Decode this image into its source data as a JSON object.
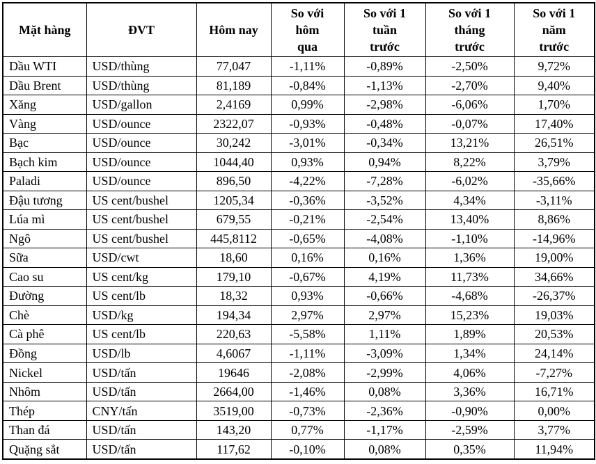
{
  "colors": {
    "border": "#000000",
    "text": "#000000",
    "background": "#ffffff"
  },
  "chart_data": {
    "type": "table",
    "headers": [
      "Mặt hàng",
      "ĐVT",
      "Hôm nay",
      "So với\nhôm\nqua",
      "So với 1\ntuần\ntrước",
      "So với 1\ntháng\ntrước",
      "So với 1\nnăm\ntrước"
    ],
    "rows": [
      [
        "Dầu WTI",
        "USD/thùng",
        "77,047",
        "-1,11%",
        "-0,89%",
        "-2,50%",
        "9,72%"
      ],
      [
        "Dầu Brent",
        "USD/thùng",
        "81,189",
        "-0,84%",
        "-1,13%",
        "-2,70%",
        "9,40%"
      ],
      [
        "Xăng",
        "USD/gallon",
        "2,4169",
        "0,99%",
        "-2,98%",
        "-6,06%",
        "1,70%"
      ],
      [
        "Vàng",
        "USD/ounce",
        "2322,07",
        "-0,93%",
        "-0,48%",
        "-0,07%",
        "17,40%"
      ],
      [
        "Bạc",
        "USD/ounce",
        "30,242",
        "-3,01%",
        "-0,34%",
        "13,21%",
        "26,51%"
      ],
      [
        "Bạch kim",
        "USD/ounce",
        "1044,40",
        "0,93%",
        "0,94%",
        "8,22%",
        "3,79%"
      ],
      [
        "Paladi",
        "USD/ounce",
        "896,50",
        "-4,22%",
        "-7,28%",
        "-6,02%",
        "-35,66%"
      ],
      [
        "Đậu tương",
        "US cent/bushel",
        "1205,34",
        "-0,36%",
        "-3,52%",
        "4,34%",
        "-3,11%"
      ],
      [
        "Lúa mì",
        "US cent/bushel",
        "679,55",
        "-0,21%",
        "-2,54%",
        "13,40%",
        "8,86%"
      ],
      [
        "Ngô",
        "US cent/bushel",
        "445,8112",
        "-0,65%",
        "-4,08%",
        "-1,10%",
        "-14,96%"
      ],
      [
        "Sữa",
        "USD/cwt",
        "18,60",
        "0,16%",
        "0,16%",
        "1,36%",
        "19,00%"
      ],
      [
        "Cao su",
        "US cent/kg",
        "179,10",
        "-0,67%",
        "4,19%",
        "11,73%",
        "34,66%"
      ],
      [
        "Đường",
        "US cent/lb",
        "18,32",
        "0,93%",
        "-0,66%",
        "-4,68%",
        "-26,37%"
      ],
      [
        "Chè",
        "USD/kg",
        "194,34",
        "2,97%",
        "2,97%",
        "15,23%",
        "19,03%"
      ],
      [
        "Cà phê",
        "US cent/lb",
        "220,63",
        "-5,58%",
        "1,11%",
        "1,89%",
        "20,53%"
      ],
      [
        "Đồng",
        "USD/lb",
        "4,6067",
        "-1,11%",
        "-3,09%",
        "1,34%",
        "24,14%"
      ],
      [
        "Nickel",
        "USD/tấn",
        "19646",
        "-2,08%",
        "-2,99%",
        "4,06%",
        "-7,27%"
      ],
      [
        "Nhôm",
        "USD/tấn",
        "2664,00",
        "-1,46%",
        "0,08%",
        "3,36%",
        "16,71%"
      ],
      [
        "Thép",
        "CNY/tấn",
        "3519,00",
        "-0,73%",
        "-2,36%",
        "-0,90%",
        "0,00%"
      ],
      [
        "Than đá",
        "USD/tấn",
        "143,20",
        "0,77%",
        "-1,17%",
        "-2,59%",
        "3,77%"
      ],
      [
        "Quặng sắt",
        "USD/tấn",
        "117,62",
        "-0,10%",
        "0,08%",
        "0,35%",
        "11,94%"
      ]
    ]
  }
}
